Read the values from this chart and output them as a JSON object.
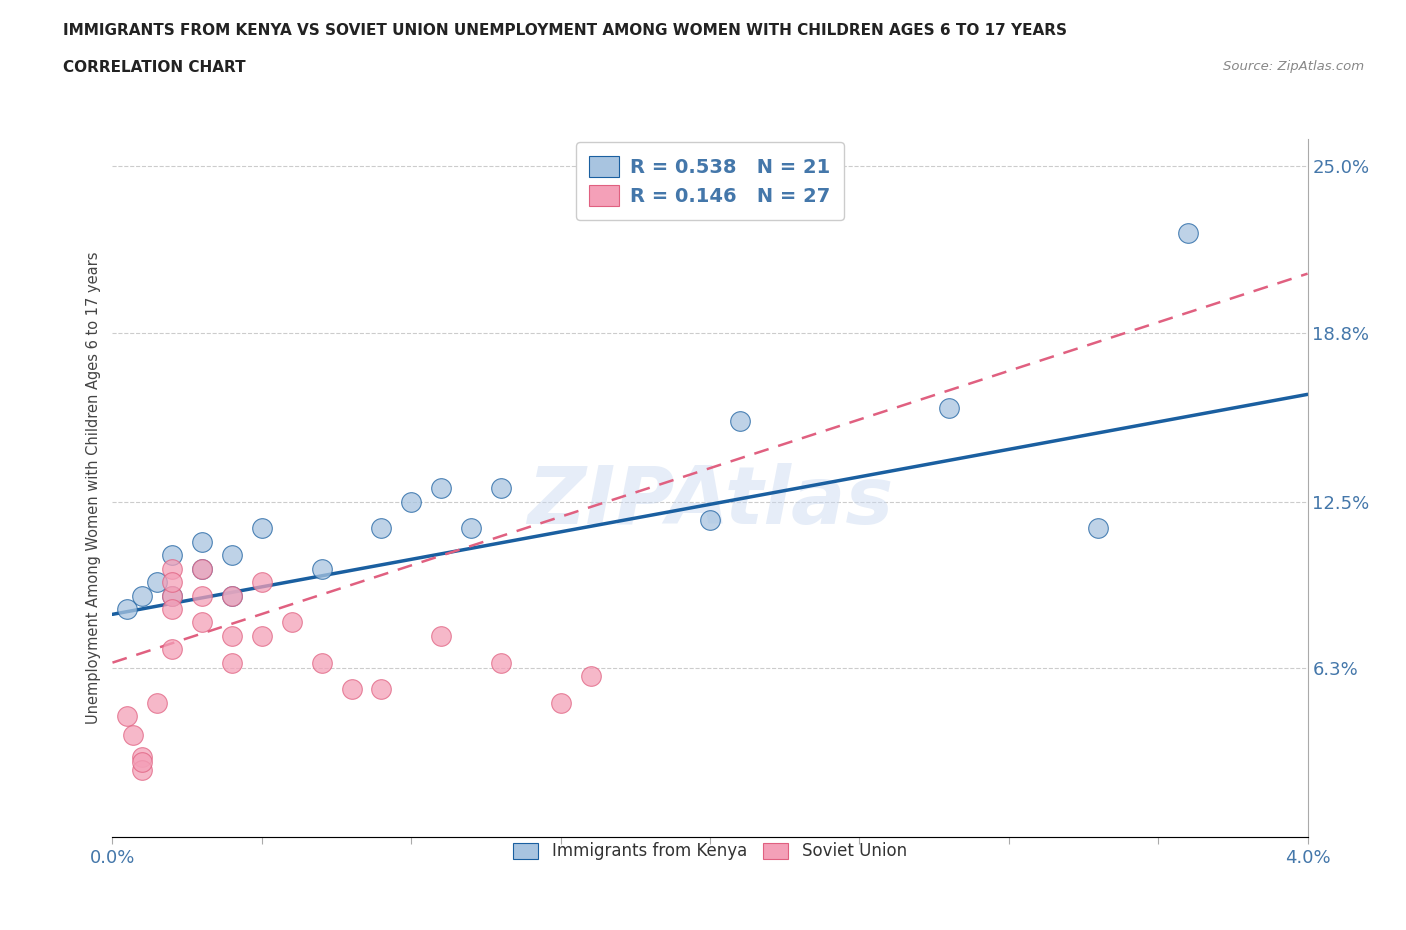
{
  "title": "IMMIGRANTS FROM KENYA VS SOVIET UNION UNEMPLOYMENT AMONG WOMEN WITH CHILDREN AGES 6 TO 17 YEARS",
  "subtitle": "CORRELATION CHART",
  "source": "Source: ZipAtlas.com",
  "ylabel": "Unemployment Among Women with Children Ages 6 to 17 years",
  "kenya_R": 0.538,
  "kenya_N": 21,
  "soviet_R": 0.146,
  "soviet_N": 27,
  "kenya_color": "#a8c4e0",
  "kenya_line_color": "#1a5fa0",
  "soviet_color": "#f4a0b8",
  "soviet_line_color": "#e06080",
  "watermark": "ZIPAtlas",
  "xlim": [
    0.0,
    0.04
  ],
  "ylim": [
    0.0,
    0.26
  ],
  "right_yticks": [
    0.063,
    0.125,
    0.188,
    0.25
  ],
  "right_yticklabels": [
    "6.3%",
    "12.5%",
    "18.8%",
    "25.0%"
  ],
  "kenya_x": [
    0.0005,
    0.001,
    0.0015,
    0.002,
    0.002,
    0.003,
    0.003,
    0.004,
    0.004,
    0.005,
    0.007,
    0.009,
    0.01,
    0.011,
    0.012,
    0.013,
    0.02,
    0.021,
    0.028,
    0.033,
    0.036
  ],
  "kenya_y": [
    0.085,
    0.09,
    0.095,
    0.09,
    0.105,
    0.1,
    0.11,
    0.09,
    0.105,
    0.115,
    0.1,
    0.115,
    0.125,
    0.13,
    0.115,
    0.13,
    0.118,
    0.155,
    0.16,
    0.115,
    0.225
  ],
  "soviet_x": [
    0.0005,
    0.0007,
    0.001,
    0.001,
    0.001,
    0.0015,
    0.002,
    0.002,
    0.002,
    0.002,
    0.002,
    0.003,
    0.003,
    0.003,
    0.004,
    0.004,
    0.004,
    0.005,
    0.005,
    0.006,
    0.007,
    0.008,
    0.009,
    0.011,
    0.013,
    0.015,
    0.016
  ],
  "soviet_y": [
    0.045,
    0.038,
    0.03,
    0.025,
    0.028,
    0.05,
    0.1,
    0.09,
    0.085,
    0.07,
    0.095,
    0.08,
    0.09,
    0.1,
    0.09,
    0.065,
    0.075,
    0.095,
    0.075,
    0.08,
    0.065,
    0.055,
    0.055,
    0.075,
    0.065,
    0.05,
    0.06
  ]
}
